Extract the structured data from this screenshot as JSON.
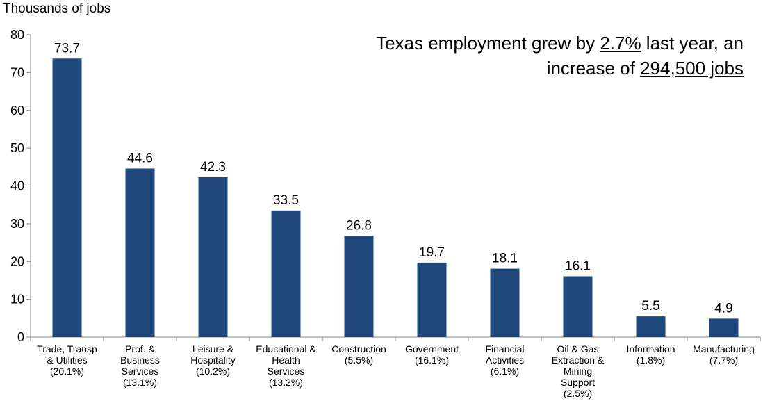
{
  "chart_data": {
    "type": "bar",
    "ylabel": "Thousands of jobs",
    "ylim": [
      0,
      80
    ],
    "yticks": [
      0,
      10,
      20,
      30,
      40,
      50,
      60,
      70,
      80
    ],
    "bar_color": "#1f497d",
    "categories": [
      [
        "Trade, Transp",
        "& Utilities",
        "(20.1%)"
      ],
      [
        "Prof. &",
        "Business",
        "Services",
        "(13.1%)"
      ],
      [
        "Leisure &",
        "Hospitality",
        "(10.2%)"
      ],
      [
        "Educational &",
        "Health",
        "Services",
        "(13.2%)"
      ],
      [
        "Construction",
        "(5.5%)"
      ],
      [
        "Government",
        "(16.1%)"
      ],
      [
        "Financial",
        "Activities",
        "(6.1%)"
      ],
      [
        "Oil & Gas",
        "Extraction &",
        "Mining",
        "Support",
        "(2.5%)"
      ],
      [
        "Information",
        "(1.8%)"
      ],
      [
        "Manufacturing",
        "(7.7%)"
      ]
    ],
    "values": [
      73.7,
      44.6,
      42.3,
      33.5,
      26.8,
      19.7,
      18.1,
      16.1,
      5.5,
      4.9
    ],
    "data_labels": [
      "73.7",
      "44.6",
      "42.3",
      "33.5",
      "26.8",
      "19.7",
      "18.1",
      "16.1",
      "5.5",
      "4.9"
    ]
  },
  "annotation": {
    "part1": "Texas employment grew by ",
    "pct": "2.7%",
    "part2": " last year, an increase of ",
    "jobs": "294,500 jobs"
  }
}
